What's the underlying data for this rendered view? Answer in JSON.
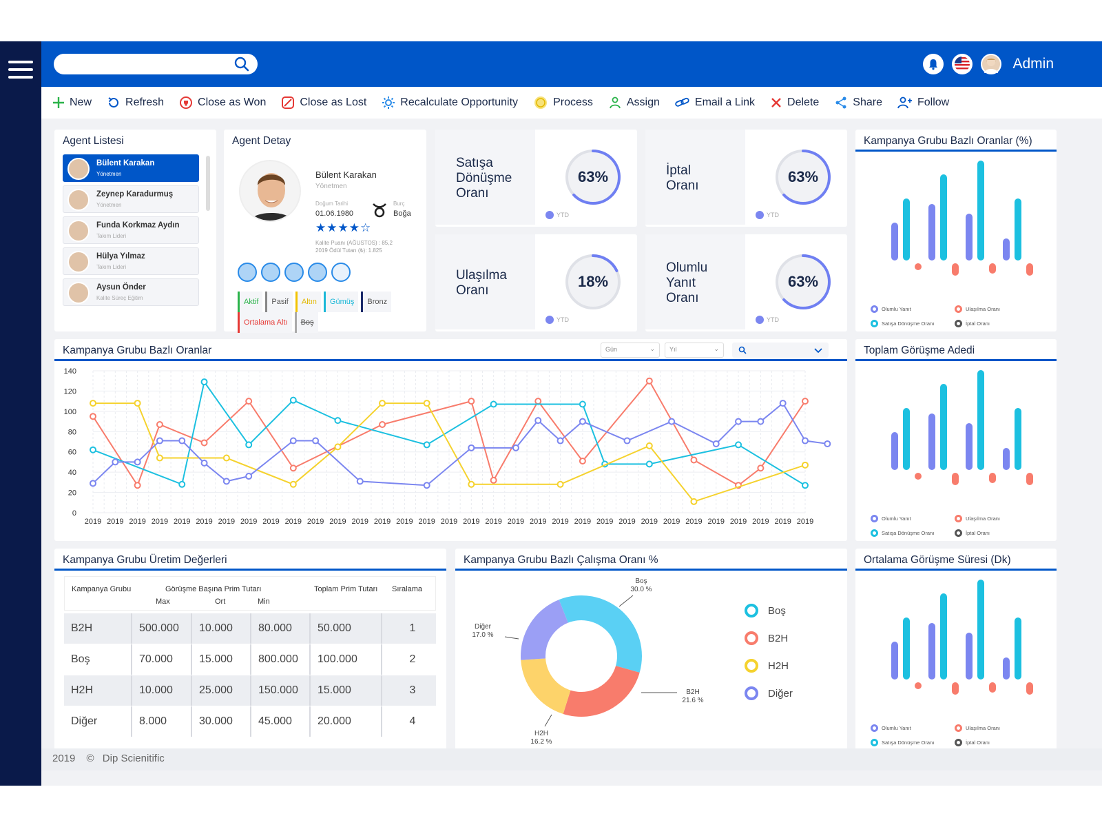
{
  "topbar": {
    "admin": "Admin"
  },
  "search": {
    "placeholder": ""
  },
  "toolbar": {
    "new": "New",
    "refresh": "Refresh",
    "close_won": "Close as Won",
    "close_lost": "Close as Lost",
    "recalculate": "Recalculate Opportunity",
    "process": "Process",
    "assign": "Assign",
    "email_link": "Email a Link",
    "delete": "Delete",
    "share": "Share",
    "follow": "Follow"
  },
  "agent_list": {
    "title": "Agent Listesi",
    "items": [
      {
        "name": "Bülent Karakan",
        "role": "Yönetmen"
      },
      {
        "name": "Zeynep Karadurmuş",
        "role": "Yönetmen"
      },
      {
        "name": "Funda Korkmaz Aydın",
        "role": "Takım Lideri"
      },
      {
        "name": "Hülya Yılmaz",
        "role": "Takım Lideri"
      },
      {
        "name": "Aysun Önder",
        "role": "Kalite Süreç Eğitim"
      }
    ]
  },
  "agent_detail": {
    "title": "Agent Detay",
    "name": "Bülent Karakan",
    "role": "Yönetmen",
    "birth_label": "Doğum Tarihi",
    "birth_date": "01.06.1980",
    "zodiac_label": "Burç",
    "zodiac": "Boğa",
    "rating": 4,
    "quality_line": "Kalite Puanı (AĞUSTOS) : 85,2",
    "award_line": "2019 Ödül Tutarı (₺): 1.825",
    "tags": [
      {
        "label": "Aktif",
        "color": "#2bb34a"
      },
      {
        "label": "Pasif",
        "color": "#888888"
      },
      {
        "label": "Altın",
        "color": "#f2c300"
      },
      {
        "label": "Gümüş",
        "color": "#1cb8d8"
      },
      {
        "label": "Bronz",
        "color": "#1b2a6a"
      },
      {
        "label": "Ortalama Altı",
        "color": "#e53935"
      },
      {
        "label": "Boş",
        "color": "#aaaaaa"
      }
    ]
  },
  "kpis": [
    {
      "label_lines": [
        "Satışa",
        "Dönüşme",
        "Oranı"
      ],
      "value": "63%",
      "pct": 0.63,
      "ytd": "YTD"
    },
    {
      "label_lines": [
        "İptal",
        "Oranı"
      ],
      "value": "63%",
      "pct": 0.63,
      "ytd": "YTD"
    },
    {
      "label_lines": [
        "Ulaşılma",
        "Oranı"
      ],
      "value": "18%",
      "pct": 0.18,
      "ytd": "YTD"
    },
    {
      "label_lines": [
        "Olumlu",
        "Yanıt",
        "Oranı"
      ],
      "value": "63%",
      "pct": 0.63,
      "ytd": "YTD"
    }
  ],
  "bar_legend": [
    "Olumlu Yanıt",
    "Ulaşılma Oranı",
    "Satışa Dönüşme Oranı",
    "İptal Oranı"
  ],
  "colors": {
    "purple": "#7b86f0",
    "cyan": "#1cc0e0",
    "salmon": "#f87c6c",
    "yellow": "#f5d22e",
    "blue": "#0056c8",
    "dark": "#555555"
  },
  "side_cards": {
    "top_title": "Kampanya Grubu Bazlı Oranlar (%)",
    "mid_title": "Toplam Görüşme Adedi",
    "bot_title": "Ortalama Görüşme Süresi (Dk)"
  },
  "line_card": {
    "title": "Kampanya Grubu Bazlı Oranlar",
    "filter_day": "Gün",
    "filter_year": "Yıl"
  },
  "chart_data": [
    {
      "type": "line",
      "title": "Kampanya Grubu Bazlı Oranlar",
      "x": [
        "2019",
        "2019",
        "2019",
        "2019",
        "2019",
        "2019",
        "2019",
        "2019",
        "2019",
        "2019",
        "2019",
        "2019",
        "2019",
        "2019",
        "2019",
        "2019",
        "2019",
        "2019",
        "2019",
        "2019",
        "2019",
        "2019",
        "2019",
        "2019",
        "2019",
        "2019",
        "2019",
        "2019",
        "2019",
        "2019",
        "2019",
        "2019",
        "2019"
      ],
      "ylim": [
        0,
        140
      ],
      "yticks": [
        0,
        20,
        40,
        60,
        80,
        100,
        120,
        140
      ],
      "series": [
        {
          "color": "#f87c6c",
          "points": [
            [
              0,
              95
            ],
            [
              2,
              27
            ],
            [
              3,
              87
            ],
            [
              5,
              69
            ],
            [
              7,
              110
            ],
            [
              9,
              44
            ],
            [
              13,
              87
            ],
            [
              17,
              110
            ],
            [
              18,
              32
            ],
            [
              20,
              110
            ],
            [
              22,
              51
            ],
            [
              25,
              130
            ],
            [
              27,
              52
            ],
            [
              29,
              27
            ],
            [
              30,
              44
            ],
            [
              32,
              110
            ]
          ]
        },
        {
          "color": "#1cc0e0",
          "points": [
            [
              0,
              62
            ],
            [
              4,
              28
            ],
            [
              5,
              129
            ],
            [
              7,
              67
            ],
            [
              9,
              111
            ],
            [
              11,
              91
            ],
            [
              15,
              67
            ],
            [
              18,
              107
            ],
            [
              22,
              107
            ],
            [
              23,
              48
            ],
            [
              25,
              48
            ],
            [
              29,
              67
            ],
            [
              32,
              27
            ]
          ]
        },
        {
          "color": "#f5d22e",
          "points": [
            [
              0,
              108
            ],
            [
              2,
              108
            ],
            [
              3,
              54
            ],
            [
              6,
              54
            ],
            [
              9,
              28
            ],
            [
              11,
              65
            ],
            [
              13,
              108
            ],
            [
              15,
              108
            ],
            [
              17,
              28
            ],
            [
              21,
              28
            ],
            [
              25,
              66
            ],
            [
              27,
              11
            ],
            [
              32,
              47
            ]
          ]
        },
        {
          "color": "#7b86f0",
          "points": [
            [
              0,
              29
            ],
            [
              1,
              50
            ],
            [
              2,
              50
            ],
            [
              3,
              71
            ],
            [
              4,
              71
            ],
            [
              5,
              49
            ],
            [
              6,
              31
            ],
            [
              7,
              36
            ],
            [
              9,
              71
            ],
            [
              10,
              71
            ],
            [
              12,
              31
            ],
            [
              15,
              27
            ],
            [
              17,
              64
            ],
            [
              19,
              64
            ],
            [
              20,
              91
            ],
            [
              21,
              71
            ],
            [
              22,
              90
            ],
            [
              24,
              71
            ],
            [
              26,
              90
            ],
            [
              28,
              68
            ],
            [
              29,
              90
            ],
            [
              30,
              90
            ],
            [
              31,
              108
            ],
            [
              32,
              71
            ],
            [
              33,
              68
            ]
          ]
        }
      ]
    },
    {
      "type": "pie",
      "title": "Kampanya Grubu Bazlı Çalışma Oranı %",
      "slices": [
        {
          "name": "Boş",
          "value": 30.0,
          "color": "#5ad0f4"
        },
        {
          "name": "B2H",
          "value": 21.6,
          "color": "#f87c6c"
        },
        {
          "name": "H2H",
          "value": 16.2,
          "color": "#fdd36a"
        },
        {
          "name": "Diğer",
          "value": 17.0,
          "color": "#9b9ff5"
        }
      ]
    },
    {
      "type": "bar",
      "title": "Kampanya Grubu Bazlı Oranlar (%)",
      "groups": [
        {
          "purple": 55,
          "cyan": 90,
          "salmon": 10
        },
        {
          "purple": 82,
          "cyan": 125,
          "salmon": 18
        },
        {
          "purple": 68,
          "cyan": 145,
          "salmon": 15
        },
        {
          "purple": 32,
          "cyan": 90,
          "salmon": 18
        }
      ]
    }
  ],
  "pie_labels": [
    {
      "name": "Boş",
      "value": "30.0 %"
    },
    {
      "name": "B2H",
      "value": "21.6 %"
    },
    {
      "name": "H2H",
      "value": "16.2 %"
    },
    {
      "name": "Diğer",
      "value": "17.0 %"
    }
  ],
  "pie_legend": [
    "Boş",
    "B2H",
    "H2H",
    "Diğer"
  ],
  "production_table": {
    "title": "Kampanya Grubu Üretim Değerleri",
    "headers": {
      "group": "Kampanya Grubu",
      "per_call": "Görüşme Başına Prim Tutarı",
      "max": "Max",
      "avg": "Ort",
      "min": "Min",
      "total": "Toplam Prim Tutarı",
      "rank": "Sıralama"
    },
    "rows": [
      [
        "B2H",
        "500.000",
        "10.000",
        "80.000",
        "50.000",
        "1"
      ],
      [
        "Boş",
        "70.000",
        "15.000",
        "800.000",
        "100.000",
        "2"
      ],
      [
        "H2H",
        "10.000",
        "25.000",
        "150.000",
        "15.000",
        "3"
      ],
      [
        "Diğer",
        "8.000",
        "30.000",
        "45.000",
        "20.000",
        "4"
      ]
    ]
  },
  "footer": {
    "year": "2019",
    "copyright": "©",
    "company": "Dip Scienitific"
  }
}
